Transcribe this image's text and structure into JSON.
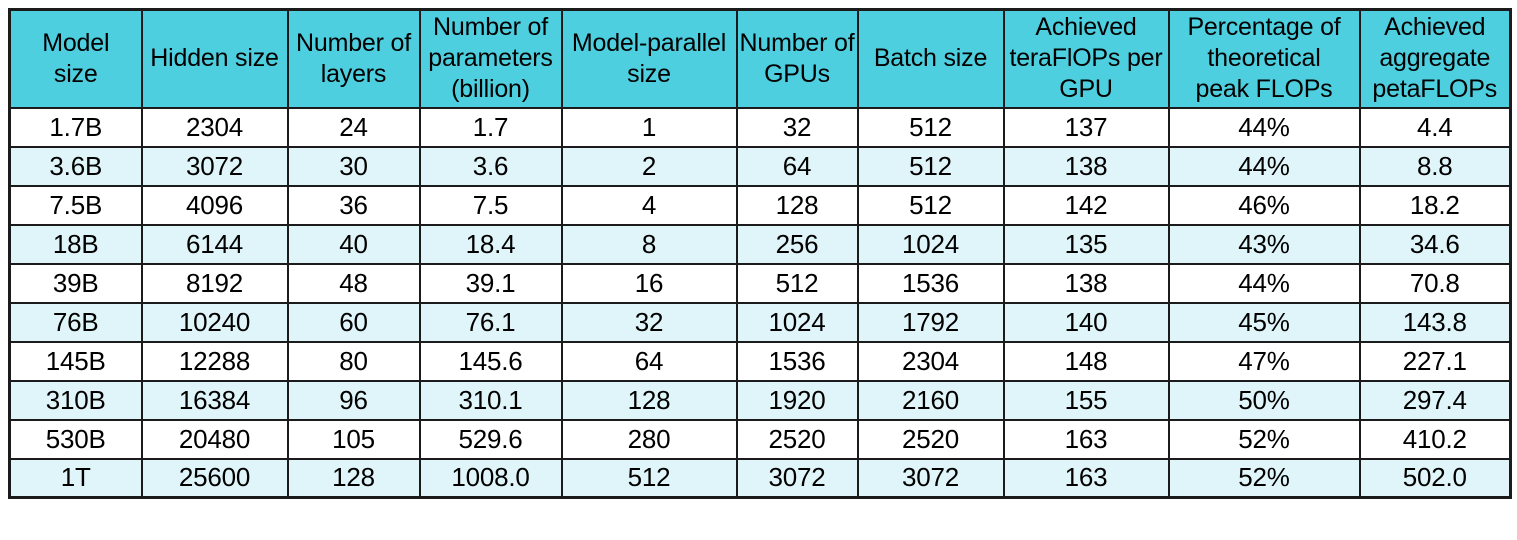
{
  "colors": {
    "header_bg": "#4DCFDF",
    "row_odd_bg": "#FFFFFF",
    "row_even_bg": "#E0F5F9",
    "border": "#1B1B1B",
    "text": "#000000"
  },
  "chart_data": {
    "type": "table",
    "columns": [
      {
        "label": "Model size",
        "lines": [
          "Model",
          "size"
        ]
      },
      {
        "label": "Hidden size",
        "lines": [
          "Hidden size"
        ]
      },
      {
        "label": "Number of layers",
        "lines": [
          "Number of",
          "layers"
        ]
      },
      {
        "label": "Number of parameters (billion)",
        "lines": [
          "Number of",
          "parameters",
          "(billion)"
        ]
      },
      {
        "label": "Model-parallel size",
        "lines": [
          "Model-parallel",
          "size"
        ]
      },
      {
        "label": "Number of GPUs",
        "lines": [
          "Number of",
          "GPUs"
        ]
      },
      {
        "label": "Batch size",
        "lines": [
          "Batch size"
        ]
      },
      {
        "label": "Achieved teraFlOPs per GPU",
        "lines": [
          "Achieved",
          "teraFlOPs per",
          "GPU"
        ]
      },
      {
        "label": "Percentage of theoretical peak FLOPs",
        "lines": [
          "Percentage of",
          "theoretical",
          "peak FLOPs"
        ]
      },
      {
        "label": "Achieved aggregate petaFLOPs",
        "lines": [
          "Achieved",
          "aggregate",
          "petaFLOPs"
        ]
      }
    ],
    "rows": [
      [
        "1.7B",
        "2304",
        "24",
        "1.7",
        "1",
        "32",
        "512",
        "137",
        "44%",
        "4.4"
      ],
      [
        "3.6B",
        "3072",
        "30",
        "3.6",
        "2",
        "64",
        "512",
        "138",
        "44%",
        "8.8"
      ],
      [
        "7.5B",
        "4096",
        "36",
        "7.5",
        "4",
        "128",
        "512",
        "142",
        "46%",
        "18.2"
      ],
      [
        "18B",
        "6144",
        "40",
        "18.4",
        "8",
        "256",
        "1024",
        "135",
        "43%",
        "34.6"
      ],
      [
        "39B",
        "8192",
        "48",
        "39.1",
        "16",
        "512",
        "1536",
        "138",
        "44%",
        "70.8"
      ],
      [
        "76B",
        "10240",
        "60",
        "76.1",
        "32",
        "1024",
        "1792",
        "140",
        "45%",
        "143.8"
      ],
      [
        "145B",
        "12288",
        "80",
        "145.6",
        "64",
        "1536",
        "2304",
        "148",
        "47%",
        "227.1"
      ],
      [
        "310B",
        "16384",
        "96",
        "310.1",
        "128",
        "1920",
        "2160",
        "155",
        "50%",
        "297.4"
      ],
      [
        "530B",
        "20480",
        "105",
        "529.6",
        "280",
        "2520",
        "2520",
        "163",
        "52%",
        "410.2"
      ],
      [
        "1T",
        "25600",
        "128",
        "1008.0",
        "512",
        "3072",
        "3072",
        "163",
        "52%",
        "502.0"
      ]
    ]
  }
}
